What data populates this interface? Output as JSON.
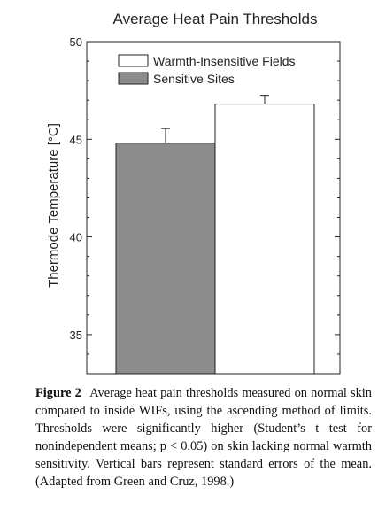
{
  "chart_data": {
    "type": "bar",
    "title": "Average Heat Pain Thresholds",
    "ylabel": "Thermode Temperature [°C]",
    "xlabel": "",
    "ylim": [
      33,
      50
    ],
    "yticks": [
      35,
      40,
      45,
      50
    ],
    "grid": false,
    "legend_position": "top-right",
    "series": [
      {
        "name": "Sensitive Sites",
        "value": 44.8,
        "error": 0.75,
        "color": "#8c8c8c"
      },
      {
        "name": "Warmth-Insensitive Fields",
        "value": 46.8,
        "error": 0.45,
        "color": "#ffffff"
      }
    ],
    "legend": [
      "Warmth-Insensitive Fields",
      "Sensitive Sites"
    ]
  },
  "caption": {
    "label": "Figure 2",
    "text": "Average heat pain thresholds measured on normal skin compared to inside WIFs, using the ascending method of limits. Thresholds were significantly higher (Student’s t test for nonindependent means; p < 0.05) on skin lacking normal warmth sensitivity. Vertical bars represent standard errors of the mean. (Adapted from Green and Cruz, 1998.)"
  }
}
